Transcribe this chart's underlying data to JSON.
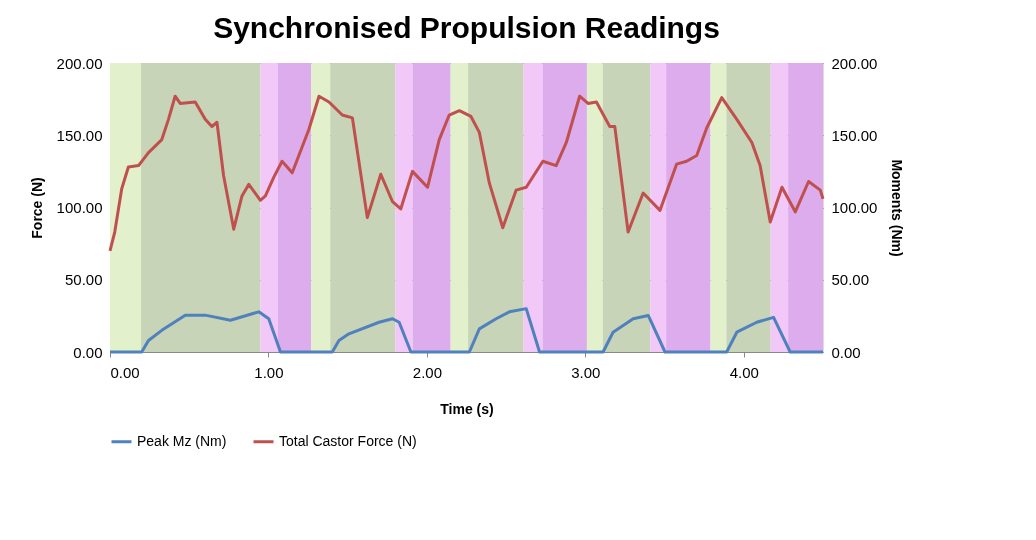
{
  "chart_data": {
    "type": "line",
    "title": "Synchronised Propulsion Readings",
    "xlabel": "Time (s)",
    "ylabel": "Force (N)",
    "y2label": "Moments (Nm)",
    "xlim": [
      0,
      4.5
    ],
    "xticks": [
      {
        "value": 0,
        "label": "0.00"
      },
      {
        "value": 1,
        "label": "1.00"
      },
      {
        "value": 2,
        "label": "2.00"
      },
      {
        "value": 3,
        "label": "3.00"
      },
      {
        "value": 4,
        "label": "4.00"
      }
    ],
    "ylim": [
      0,
      200
    ],
    "yticks": [
      {
        "value": 0,
        "label": "0.00"
      },
      {
        "value": 50,
        "label": "50.00"
      },
      {
        "value": 100,
        "label": "100.00"
      },
      {
        "value": 150,
        "label": "150.00"
      },
      {
        "value": 200,
        "label": "200.00"
      }
    ],
    "y2lim": [
      0,
      200
    ],
    "y2ticks": [
      {
        "value": 0,
        "label": "0.00"
      },
      {
        "value": 50,
        "label": "50.00"
      },
      {
        "value": 100,
        "label": "100.00"
      },
      {
        "value": 150,
        "label": "150.00"
      },
      {
        "value": 200,
        "label": "200.00"
      }
    ],
    "grid": "y",
    "legend": "bottom",
    "marker": "none",
    "line_style": "solid",
    "series": [
      {
        "name": "Peak Mz (Nm)",
        "color": "#4f81bd",
        "axis": "y2",
        "x": [
          0,
          0.2,
          0.243,
          0.327,
          0.475,
          0.601,
          0.76,
          0.939,
          1.002,
          1.076,
          1.403,
          1.445,
          1.508,
          1.698,
          1.783,
          1.825,
          1.899,
          2.268,
          2.331,
          2.437,
          2.521,
          2.627,
          2.711,
          3.112,
          3.175,
          3.302,
          3.397,
          3.503,
          3.892,
          3.956,
          4.082,
          4.188,
          4.293,
          4.5
        ],
        "values": [
          0,
          0,
          8,
          15,
          25.5,
          25.5,
          22,
          27.8,
          23,
          0,
          0,
          8,
          12.6,
          20.6,
          23,
          20.6,
          0,
          0,
          16,
          23,
          27.8,
          30,
          0,
          0,
          13.7,
          23,
          25.3,
          0,
          0,
          13.7,
          20.6,
          24,
          0,
          0
        ]
      },
      {
        "name": "Total Castor Force (N)",
        "color": "#c0504d",
        "x": [
          0,
          0.03,
          0.074,
          0.116,
          0.18,
          0.243,
          0.327,
          0.369,
          0.411,
          0.443,
          0.538,
          0.601,
          0.643,
          0.675,
          0.717,
          0.781,
          0.833,
          0.876,
          0.949,
          0.981,
          1.034,
          1.086,
          1.15,
          1.255,
          1.319,
          1.382,
          1.466,
          1.53,
          1.572,
          1.624,
          1.709,
          1.783,
          1.835,
          1.909,
          2.004,
          2.078,
          2.141,
          2.205,
          2.278,
          2.331,
          2.394,
          2.479,
          2.563,
          2.627,
          2.732,
          2.816,
          2.88,
          2.964,
          3.017,
          3.07,
          3.154,
          3.186,
          3.27,
          3.365,
          3.471,
          3.576,
          3.639,
          3.703,
          3.766,
          3.861,
          3.956,
          4.051,
          4.103,
          4.167,
          4.241,
          4.325,
          4.409,
          4.483,
          4.5
        ],
        "values": [
          70,
          83,
          113,
          128,
          129,
          138,
          147,
          161,
          177,
          172,
          173,
          161,
          156,
          159,
          122,
          85,
          108,
          116,
          105,
          108,
          121,
          132,
          124,
          154,
          177,
          173,
          164,
          162,
          131,
          93,
          123,
          104,
          99,
          125,
          114,
          147,
          164,
          167,
          163,
          152,
          117,
          86,
          112,
          114,
          132,
          129,
          145,
          177,
          172,
          173,
          156,
          156,
          83,
          110,
          98,
          130,
          132,
          136,
          155,
          176,
          161,
          145,
          129,
          90,
          114,
          97,
          118,
          112,
          106
        ]
      }
    ],
    "bands": [
      {
        "axis": "x",
        "from": 0,
        "to": 0.196,
        "color": "#e2f0cb"
      },
      {
        "axis": "x",
        "from": 0.196,
        "to": 0.95,
        "color": "#c8d4b8"
      },
      {
        "axis": "x",
        "from": 0.95,
        "to": 1.06,
        "color": "#f2c8f8"
      },
      {
        "axis": "x",
        "from": 1.06,
        "to": 1.27,
        "color": "#dcacec"
      },
      {
        "axis": "x",
        "from": 1.27,
        "to": 1.39,
        "color": "#e2f0cb"
      },
      {
        "axis": "x",
        "from": 1.39,
        "to": 1.8,
        "color": "#c8d4b8"
      },
      {
        "axis": "x",
        "from": 1.8,
        "to": 1.91,
        "color": "#f2c8f8"
      },
      {
        "axis": "x",
        "from": 1.91,
        "to": 2.15,
        "color": "#dcacec"
      },
      {
        "axis": "x",
        "from": 2.15,
        "to": 2.26,
        "color": "#e2f0cb"
      },
      {
        "axis": "x",
        "from": 2.26,
        "to": 2.61,
        "color": "#c8d4b8"
      },
      {
        "axis": "x",
        "from": 2.61,
        "to": 2.73,
        "color": "#f2c8f8"
      },
      {
        "axis": "x",
        "from": 2.73,
        "to": 3.01,
        "color": "#dcacec"
      },
      {
        "axis": "x",
        "from": 3.01,
        "to": 3.11,
        "color": "#e2f0cb"
      },
      {
        "axis": "x",
        "from": 3.11,
        "to": 3.41,
        "color": "#c8d4b8"
      },
      {
        "axis": "x",
        "from": 3.41,
        "to": 3.51,
        "color": "#f2c8f8"
      },
      {
        "axis": "x",
        "from": 3.51,
        "to": 3.79,
        "color": "#dcacec"
      },
      {
        "axis": "x",
        "from": 3.79,
        "to": 3.89,
        "color": "#e2f0cb"
      },
      {
        "axis": "x",
        "from": 3.89,
        "to": 4.17,
        "color": "#c8d4b8"
      },
      {
        "axis": "x",
        "from": 4.17,
        "to": 4.28,
        "color": "#f2c8f8"
      },
      {
        "axis": "x",
        "from": 4.28,
        "to": 4.5,
        "color": "#dcacec"
      }
    ]
  }
}
